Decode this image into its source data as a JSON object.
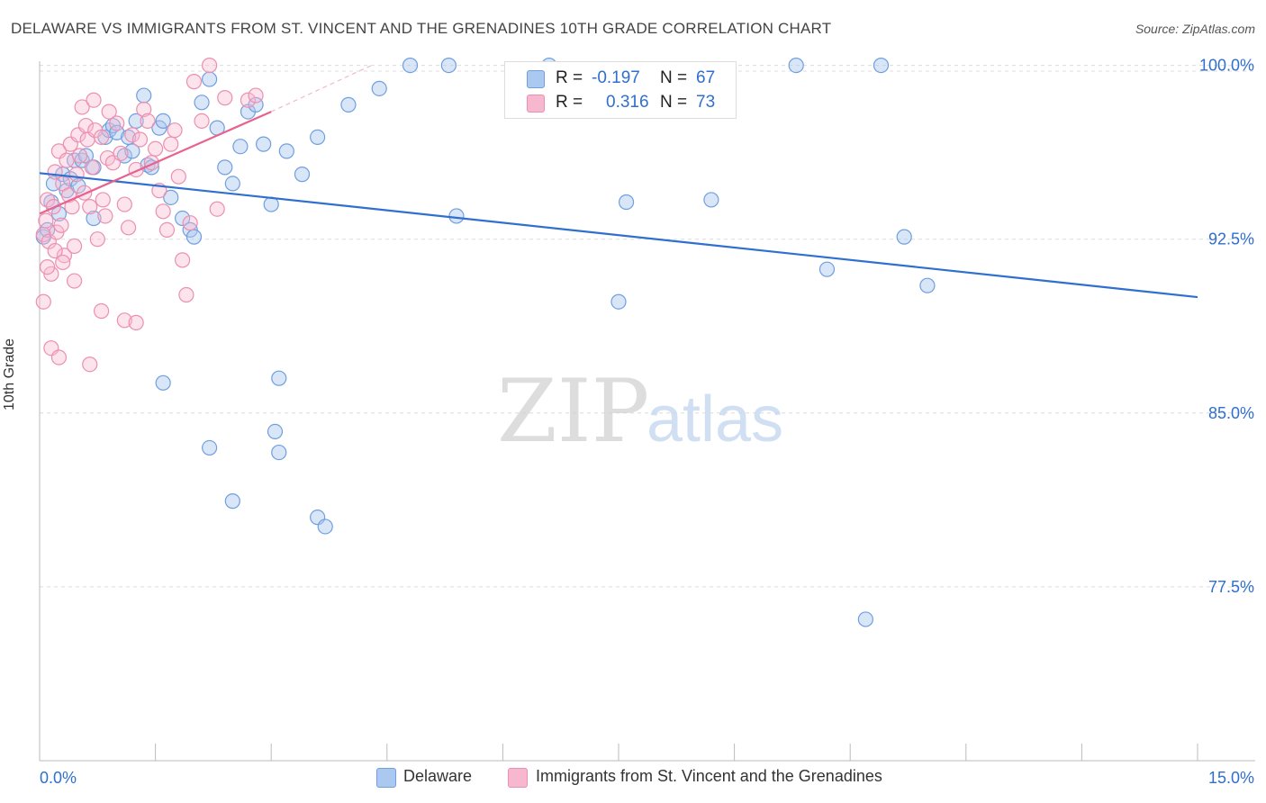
{
  "header": {
    "title": "DELAWARE VS IMMIGRANTS FROM ST. VINCENT AND THE GRENADINES 10TH GRADE CORRELATION CHART",
    "source": "Source: ZipAtlas.com"
  },
  "watermark": {
    "zip": "ZIP",
    "atlas": "atlas"
  },
  "legend": {
    "r_label": "R =",
    "n_label": "N =",
    "series": [
      {
        "name": "Delaware",
        "r": "-0.197",
        "n": "67",
        "fill": "#aac8f0",
        "stroke": "#6f9fdf"
      },
      {
        "name": "Immigrants from St. Vincent and the Grenadines",
        "r": "0.316",
        "n": "73",
        "fill": "#f7b8cf",
        "stroke": "#ec8fb0"
      }
    ]
  },
  "colors": {
    "blue_line": "#2f6fd0",
    "pink_line": "#e8628f",
    "axis_text": "#2f6fd0"
  },
  "chart_data": {
    "type": "scatter",
    "title": "DELAWARE VS IMMIGRANTS FROM ST. VINCENT AND THE GRENADINES 10TH GRADE CORRELATION CHART",
    "xlabel": "",
    "ylabel": "10th Grade",
    "xlim": [
      0,
      15
    ],
    "ylim": [
      70,
      100.8
    ],
    "x_tick_labels": [
      {
        "value": 0,
        "label": "0.0%"
      },
      {
        "value": 15,
        "label": "15.0%"
      }
    ],
    "y_tick_labels": [
      {
        "value": 100,
        "label": "100.0%"
      },
      {
        "value": 92.5,
        "label": "92.5%"
      },
      {
        "value": 85,
        "label": "85.0%"
      },
      {
        "value": 77.5,
        "label": "77.5%"
      }
    ],
    "grid": true,
    "series": [
      {
        "name": "Delaware",
        "points": [
          [
            0.05,
            92.6
          ],
          [
            0.1,
            92.9
          ],
          [
            0.15,
            94.1
          ],
          [
            0.18,
            94.9
          ],
          [
            0.25,
            93.6
          ],
          [
            0.3,
            95.3
          ],
          [
            0.35,
            94.6
          ],
          [
            0.4,
            95.1
          ],
          [
            0.45,
            95.9
          ],
          [
            0.5,
            94.8
          ],
          [
            0.55,
            95.9
          ],
          [
            0.6,
            96.1
          ],
          [
            0.7,
            93.4
          ],
          [
            0.7,
            95.6
          ],
          [
            0.85,
            96.9
          ],
          [
            0.9,
            97.2
          ],
          [
            0.95,
            97.4
          ],
          [
            1.0,
            97.1
          ],
          [
            1.1,
            96.1
          ],
          [
            1.15,
            96.9
          ],
          [
            1.2,
            96.3
          ],
          [
            1.25,
            97.6
          ],
          [
            1.35,
            98.7
          ],
          [
            1.4,
            95.7
          ],
          [
            1.45,
            95.6
          ],
          [
            1.55,
            97.3
          ],
          [
            1.6,
            97.6
          ],
          [
            1.7,
            94.3
          ],
          [
            1.85,
            93.4
          ],
          [
            1.95,
            92.9
          ],
          [
            2.0,
            92.6
          ],
          [
            2.1,
            98.4
          ],
          [
            2.2,
            99.4
          ],
          [
            2.3,
            97.3
          ],
          [
            2.4,
            95.6
          ],
          [
            2.5,
            94.9
          ],
          [
            2.6,
            96.5
          ],
          [
            2.7,
            98.0
          ],
          [
            2.8,
            98.3
          ],
          [
            2.9,
            96.6
          ],
          [
            3.0,
            94.0
          ],
          [
            3.2,
            96.3
          ],
          [
            3.4,
            95.3
          ],
          [
            3.6,
            96.9
          ],
          [
            4.0,
            98.3
          ],
          [
            4.4,
            99.0
          ],
          [
            4.8,
            100.0
          ],
          [
            5.3,
            100.0
          ],
          [
            5.4,
            93.5
          ],
          [
            6.6,
            100.0
          ],
          [
            1.6,
            86.3
          ],
          [
            2.2,
            83.5
          ],
          [
            2.5,
            81.2
          ],
          [
            3.05,
            84.2
          ],
          [
            3.1,
            83.3
          ],
          [
            3.1,
            86.5
          ],
          [
            3.6,
            80.5
          ],
          [
            3.7,
            80.1
          ],
          [
            7.5,
            89.8
          ],
          [
            7.6,
            94.1
          ],
          [
            8.7,
            94.2
          ],
          [
            9.8,
            100.0
          ],
          [
            10.2,
            91.2
          ],
          [
            10.9,
            100.0
          ],
          [
            11.2,
            92.6
          ],
          [
            11.5,
            90.5
          ],
          [
            10.7,
            76.1
          ]
        ]
      },
      {
        "name": "Immigrants from St. Vincent and the Grenadines",
        "points": [
          [
            0.05,
            92.7
          ],
          [
            0.08,
            93.3
          ],
          [
            0.1,
            94.2
          ],
          [
            0.12,
            92.4
          ],
          [
            0.15,
            91.0
          ],
          [
            0.18,
            93.9
          ],
          [
            0.2,
            95.4
          ],
          [
            0.22,
            92.8
          ],
          [
            0.25,
            96.3
          ],
          [
            0.28,
            93.1
          ],
          [
            0.3,
            94.9
          ],
          [
            0.32,
            91.8
          ],
          [
            0.35,
            95.9
          ],
          [
            0.38,
            94.4
          ],
          [
            0.4,
            96.6
          ],
          [
            0.42,
            93.9
          ],
          [
            0.45,
            92.2
          ],
          [
            0.48,
            95.3
          ],
          [
            0.5,
            97.0
          ],
          [
            0.52,
            96.1
          ],
          [
            0.55,
            98.2
          ],
          [
            0.58,
            94.5
          ],
          [
            0.6,
            97.4
          ],
          [
            0.62,
            96.8
          ],
          [
            0.65,
            93.9
          ],
          [
            0.68,
            95.6
          ],
          [
            0.7,
            98.5
          ],
          [
            0.72,
            97.2
          ],
          [
            0.75,
            92.5
          ],
          [
            0.8,
            96.9
          ],
          [
            0.82,
            94.2
          ],
          [
            0.85,
            93.5
          ],
          [
            0.88,
            96.0
          ],
          [
            0.9,
            98.0
          ],
          [
            0.95,
            95.8
          ],
          [
            1.0,
            97.5
          ],
          [
            1.05,
            96.2
          ],
          [
            1.1,
            94.0
          ],
          [
            1.15,
            93.0
          ],
          [
            1.2,
            97.0
          ],
          [
            1.25,
            95.5
          ],
          [
            1.3,
            96.8
          ],
          [
            1.35,
            98.1
          ],
          [
            1.4,
            97.6
          ],
          [
            1.45,
            95.8
          ],
          [
            1.5,
            96.4
          ],
          [
            1.55,
            94.6
          ],
          [
            1.6,
            93.7
          ],
          [
            1.65,
            92.9
          ],
          [
            1.7,
            96.6
          ],
          [
            1.75,
            97.2
          ],
          [
            1.8,
            95.2
          ],
          [
            1.85,
            91.6
          ],
          [
            1.9,
            90.1
          ],
          [
            1.95,
            93.2
          ],
          [
            2.0,
            99.3
          ],
          [
            2.1,
            97.6
          ],
          [
            2.2,
            100.0
          ],
          [
            2.3,
            93.8
          ],
          [
            2.4,
            98.6
          ],
          [
            2.7,
            98.5
          ],
          [
            2.8,
            98.7
          ],
          [
            0.05,
            89.8
          ],
          [
            0.15,
            87.8
          ],
          [
            0.25,
            87.4
          ],
          [
            0.65,
            87.1
          ],
          [
            0.8,
            89.4
          ],
          [
            1.1,
            89.0
          ],
          [
            1.25,
            88.9
          ],
          [
            0.1,
            91.3
          ],
          [
            0.2,
            92.0
          ],
          [
            0.45,
            90.7
          ],
          [
            0.3,
            91.5
          ]
        ]
      }
    ],
    "trend_lines": [
      {
        "series": "Delaware",
        "x": [
          0,
          15
        ],
        "y": [
          95.35,
          90.0
        ],
        "style": "solid"
      },
      {
        "series": "Immigrants from St. Vincent and the Grenadines",
        "x": [
          0,
          3.0
        ],
        "y": [
          93.6,
          98.0
        ],
        "style": "solid"
      },
      {
        "series": "Immigrants from St. Vincent and the Grenadines",
        "x": [
          3.0,
          4.3
        ],
        "y": [
          98.0,
          100.0
        ],
        "style": "dashed"
      }
    ]
  }
}
